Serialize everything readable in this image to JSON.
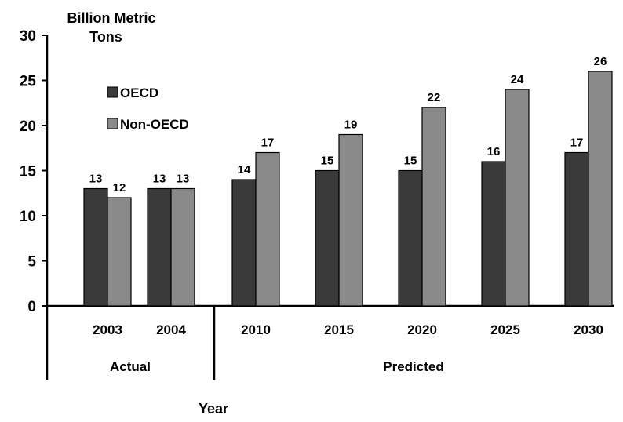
{
  "chart_data": {
    "type": "bar",
    "ylabel": "Billion Metric Tons",
    "xlabel": "Year",
    "categories": [
      "2003",
      "2004",
      "2010",
      "2015",
      "2020",
      "2025",
      "2030"
    ],
    "groups": [
      {
        "label": "Actual",
        "categories": [
          "2003",
          "2004"
        ]
      },
      {
        "label": "Predicted",
        "categories": [
          "2010",
          "2015",
          "2020",
          "2025",
          "2030"
        ]
      }
    ],
    "series": [
      {
        "name": "OECD",
        "color": "#3a3a3a",
        "values": [
          13,
          13,
          14,
          15,
          15,
          16,
          17
        ]
      },
      {
        "name": "Non-OECD",
        "color": "#8a8a8a",
        "values": [
          12,
          13,
          17,
          19,
          22,
          24,
          26
        ]
      }
    ],
    "ylim": [
      0,
      30
    ],
    "yticks": [
      0,
      5,
      10,
      15,
      20,
      25,
      30
    ],
    "grid": false,
    "legend_position": "top-left"
  }
}
